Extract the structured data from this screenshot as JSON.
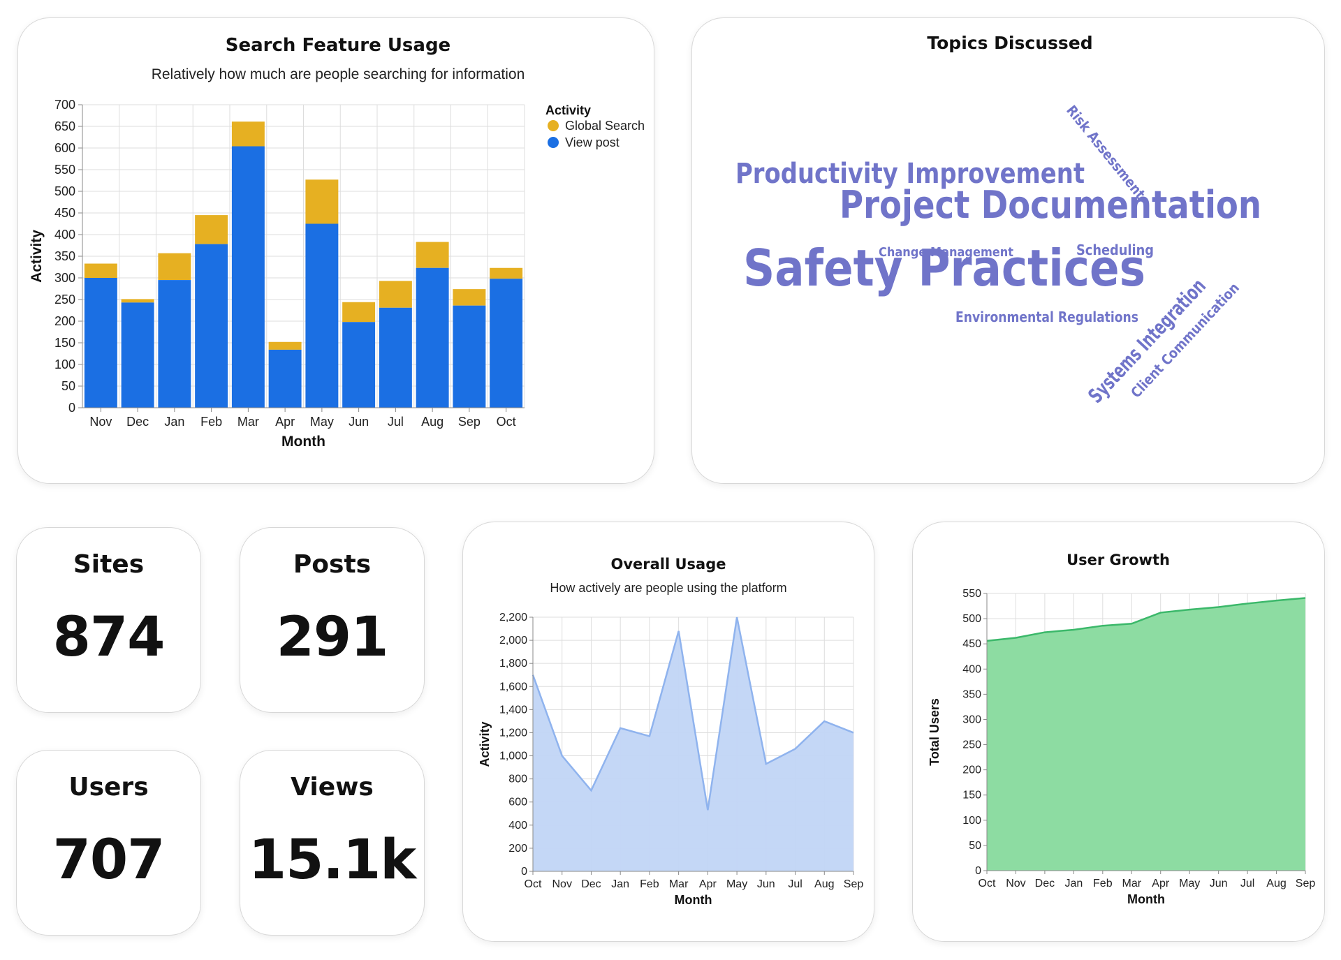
{
  "search_card": {
    "title": "Search Feature Usage",
    "subtitle": "Relatively how much are people searching for information",
    "legend_title": "Activity"
  },
  "topics_card": {
    "title": "Topics Discussed",
    "words": [
      {
        "text": "Safety Practices",
        "weight": 5
      },
      {
        "text": "Project Documentation",
        "weight": 4
      },
      {
        "text": "Productivity Improvement",
        "weight": 3
      },
      {
        "text": "Systems Integration",
        "weight": 2
      },
      {
        "text": "Risk Assessment",
        "weight": 1
      },
      {
        "text": "Client Communication",
        "weight": 1
      },
      {
        "text": "Change Management",
        "weight": 1
      },
      {
        "text": "Scheduling",
        "weight": 1
      },
      {
        "text": "Environmental Regulations",
        "weight": 1
      }
    ]
  },
  "stats": [
    {
      "label": "Sites",
      "value": "874"
    },
    {
      "label": "Posts",
      "value": "291"
    },
    {
      "label": "Users",
      "value": "707"
    },
    {
      "label": "Views",
      "value": "15.1k"
    }
  ],
  "overall_card": {
    "title": "Overall Usage",
    "subtitle": "How actively are people using the platform"
  },
  "growth_card": {
    "title": "User Growth"
  },
  "colors": {
    "global_search": "#e6b022",
    "view_post": "#1b6fe3",
    "overall_line": "#8fb3ee",
    "overall_fill": "#c1d5f5",
    "growth_line": "#3bb86a",
    "growth_fill": "#8ddca2",
    "word_cloud": "#7074c9"
  },
  "chart_data": [
    {
      "type": "bar",
      "stacked": true,
      "title": "Search Feature Usage",
      "subtitle": "Relatively how much are people searching for information",
      "xlabel": "Month",
      "ylabel": "Activity",
      "ylim": [
        0,
        700
      ],
      "yticks": [
        0,
        50,
        100,
        150,
        200,
        250,
        300,
        350,
        400,
        450,
        500,
        550,
        600,
        650,
        700
      ],
      "categories": [
        "Nov",
        "Dec",
        "Jan",
        "Feb",
        "Mar",
        "Apr",
        "May",
        "Jun",
        "Jul",
        "Aug",
        "Sep",
        "Oct"
      ],
      "series": [
        {
          "name": "View post",
          "values": [
            300,
            243,
            295,
            378,
            604,
            134,
            425,
            198,
            231,
            323,
            236,
            298
          ]
        },
        {
          "name": "Global Search",
          "values": [
            33,
            8,
            62,
            67,
            57,
            18,
            102,
            46,
            62,
            60,
            38,
            25
          ]
        }
      ],
      "legend": "top-right",
      "grid": true
    },
    {
      "type": "area",
      "title": "Overall Usage",
      "subtitle": "How actively are people using the platform",
      "xlabel": "Month",
      "ylabel": "Activity",
      "ylim": [
        0,
        2200
      ],
      "yticks": [
        0,
        200,
        400,
        600,
        800,
        1000,
        1200,
        1400,
        1600,
        1800,
        2000,
        2200
      ],
      "ytick_labels": [
        "0",
        "200",
        "400",
        "600",
        "800",
        "1,000",
        "1,200",
        "1,400",
        "1,600",
        "1,800",
        "2,000",
        "2,200"
      ],
      "categories": [
        "Oct",
        "Nov",
        "Dec",
        "Jan",
        "Feb",
        "Mar",
        "Apr",
        "May",
        "Jun",
        "Jul",
        "Aug",
        "Sep"
      ],
      "values": [
        1700,
        1000,
        700,
        1240,
        1170,
        2080,
        530,
        2200,
        930,
        1060,
        1300,
        1200
      ],
      "grid": true
    },
    {
      "type": "area",
      "title": "User Growth",
      "xlabel": "Month",
      "ylabel": "Total Users",
      "ylim": [
        0,
        550
      ],
      "yticks": [
        0,
        50,
        100,
        150,
        200,
        250,
        300,
        350,
        400,
        450,
        500,
        550
      ],
      "categories": [
        "Oct",
        "Nov",
        "Dec",
        "Jan",
        "Feb",
        "Mar",
        "Apr",
        "May",
        "Jun",
        "Jul",
        "Aug",
        "Sep"
      ],
      "values": [
        456,
        462,
        473,
        478,
        486,
        490,
        512,
        518,
        523,
        530,
        536,
        541
      ],
      "grid": true
    }
  ]
}
